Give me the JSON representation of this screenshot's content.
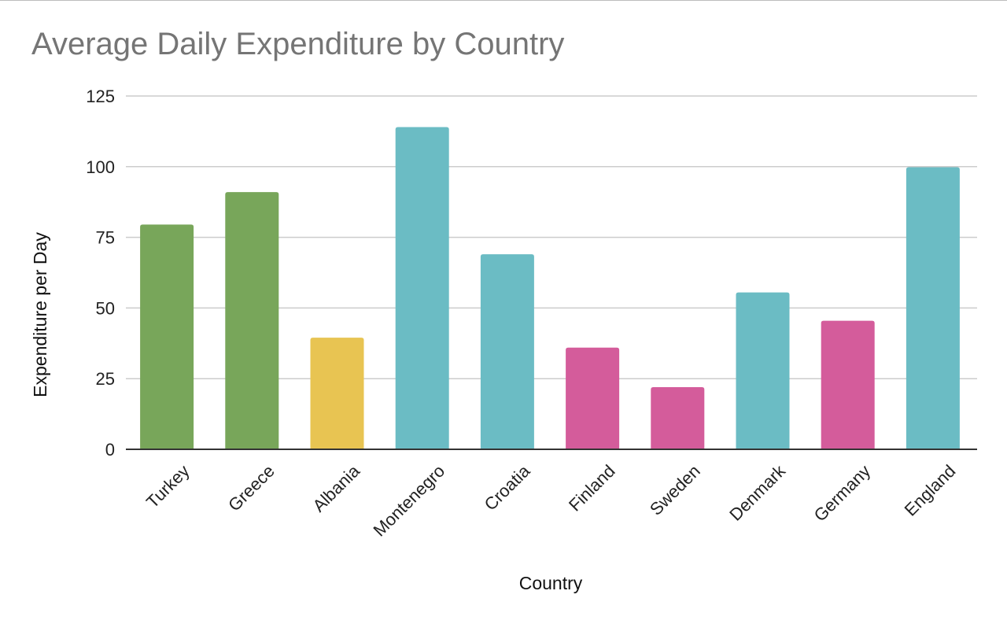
{
  "chart_data": {
    "type": "bar",
    "title": "Average Daily Expenditure by Country",
    "xlabel": "Country",
    "ylabel": "Expenditure per Day",
    "categories": [
      "Turkey",
      "Greece",
      "Albania",
      "Montenegro",
      "Croatia",
      "Finland",
      "Sweden",
      "Denmark",
      "Germany",
      "England"
    ],
    "values": [
      79.5,
      91,
      39.5,
      114,
      69,
      36,
      22,
      55.5,
      45.5,
      99.8
    ],
    "colors": [
      "#78a65a",
      "#78a65a",
      "#e8c452",
      "#6bbcc4",
      "#6bbcc4",
      "#d45c9b",
      "#d45c9b",
      "#6bbcc4",
      "#d45c9b",
      "#6bbcc4"
    ],
    "ylim": [
      0,
      125
    ],
    "yticks": [
      0,
      25,
      50,
      75,
      100,
      125
    ],
    "grid": true,
    "legend": "none"
  }
}
